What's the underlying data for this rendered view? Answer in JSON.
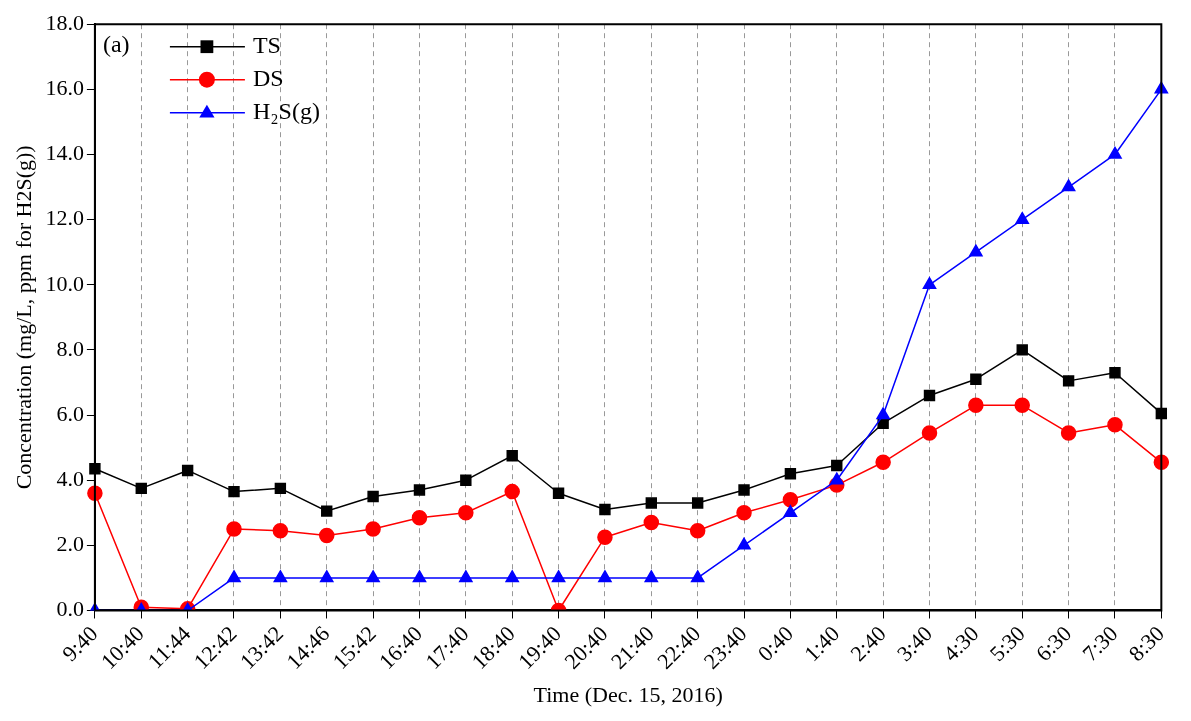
{
  "chart_data": {
    "type": "line",
    "xlabel": "Time (Dec. 15, 2016)",
    "ylabel": "Concentration (mg/L, ppm for H2S(g))",
    "annotations": [
      "(a)"
    ],
    "categories": [
      "9:40",
      "10:40",
      "11:44",
      "12:42",
      "13:42",
      "14:46",
      "15:42",
      "16:40",
      "17:40",
      "18:40",
      "19:40",
      "20:40",
      "21:40",
      "22:40",
      "23:40",
      "0:40",
      "1:40",
      "2:40",
      "3:40",
      "4:30",
      "5:30",
      "6:30",
      "7:30",
      "8:30"
    ],
    "series": [
      {
        "name": "TS",
        "color": "#000000",
        "marker": "square",
        "values": [
          4.35,
          3.75,
          4.3,
          3.65,
          3.75,
          3.05,
          3.5,
          3.7,
          4.0,
          4.75,
          3.6,
          3.1,
          3.3,
          3.3,
          3.7,
          4.2,
          4.45,
          5.75,
          6.6,
          7.1,
          8.0,
          7.05,
          7.3,
          6.05
        ]
      },
      {
        "name": "DS",
        "color": "#ff0000",
        "marker": "circle",
        "values": [
          3.6,
          0.1,
          0.05,
          2.5,
          2.45,
          2.3,
          2.5,
          2.85,
          3.0,
          3.65,
          0.0,
          2.25,
          2.7,
          2.45,
          3.0,
          3.4,
          3.85,
          4.55,
          5.45,
          6.3,
          6.3,
          5.45,
          5.7,
          4.55
        ]
      },
      {
        "name": "H₂S(g)",
        "color": "#0000ff",
        "marker": "triangle",
        "values": [
          0,
          0,
          0,
          1,
          1,
          1,
          1,
          1,
          1,
          1,
          1,
          1,
          1,
          1,
          2,
          3,
          4,
          6,
          10,
          11,
          12,
          13,
          14,
          16
        ]
      }
    ],
    "ylim": [
      0,
      18
    ],
    "yticks": [
      {
        "value": 0,
        "label": "0.0"
      },
      {
        "value": 2,
        "label": "2.0"
      },
      {
        "value": 4,
        "label": "4.0"
      },
      {
        "value": 6,
        "label": "6.0"
      },
      {
        "value": 8,
        "label": "8.0"
      },
      {
        "value": 10,
        "label": "10.0"
      },
      {
        "value": 12,
        "label": "12.0"
      },
      {
        "value": 14,
        "label": "14.0"
      },
      {
        "value": 16,
        "label": "16.0"
      },
      {
        "value": 18,
        "label": "18.0"
      }
    ],
    "grid": "x",
    "legend": "top left",
    "line_style": "solid"
  }
}
